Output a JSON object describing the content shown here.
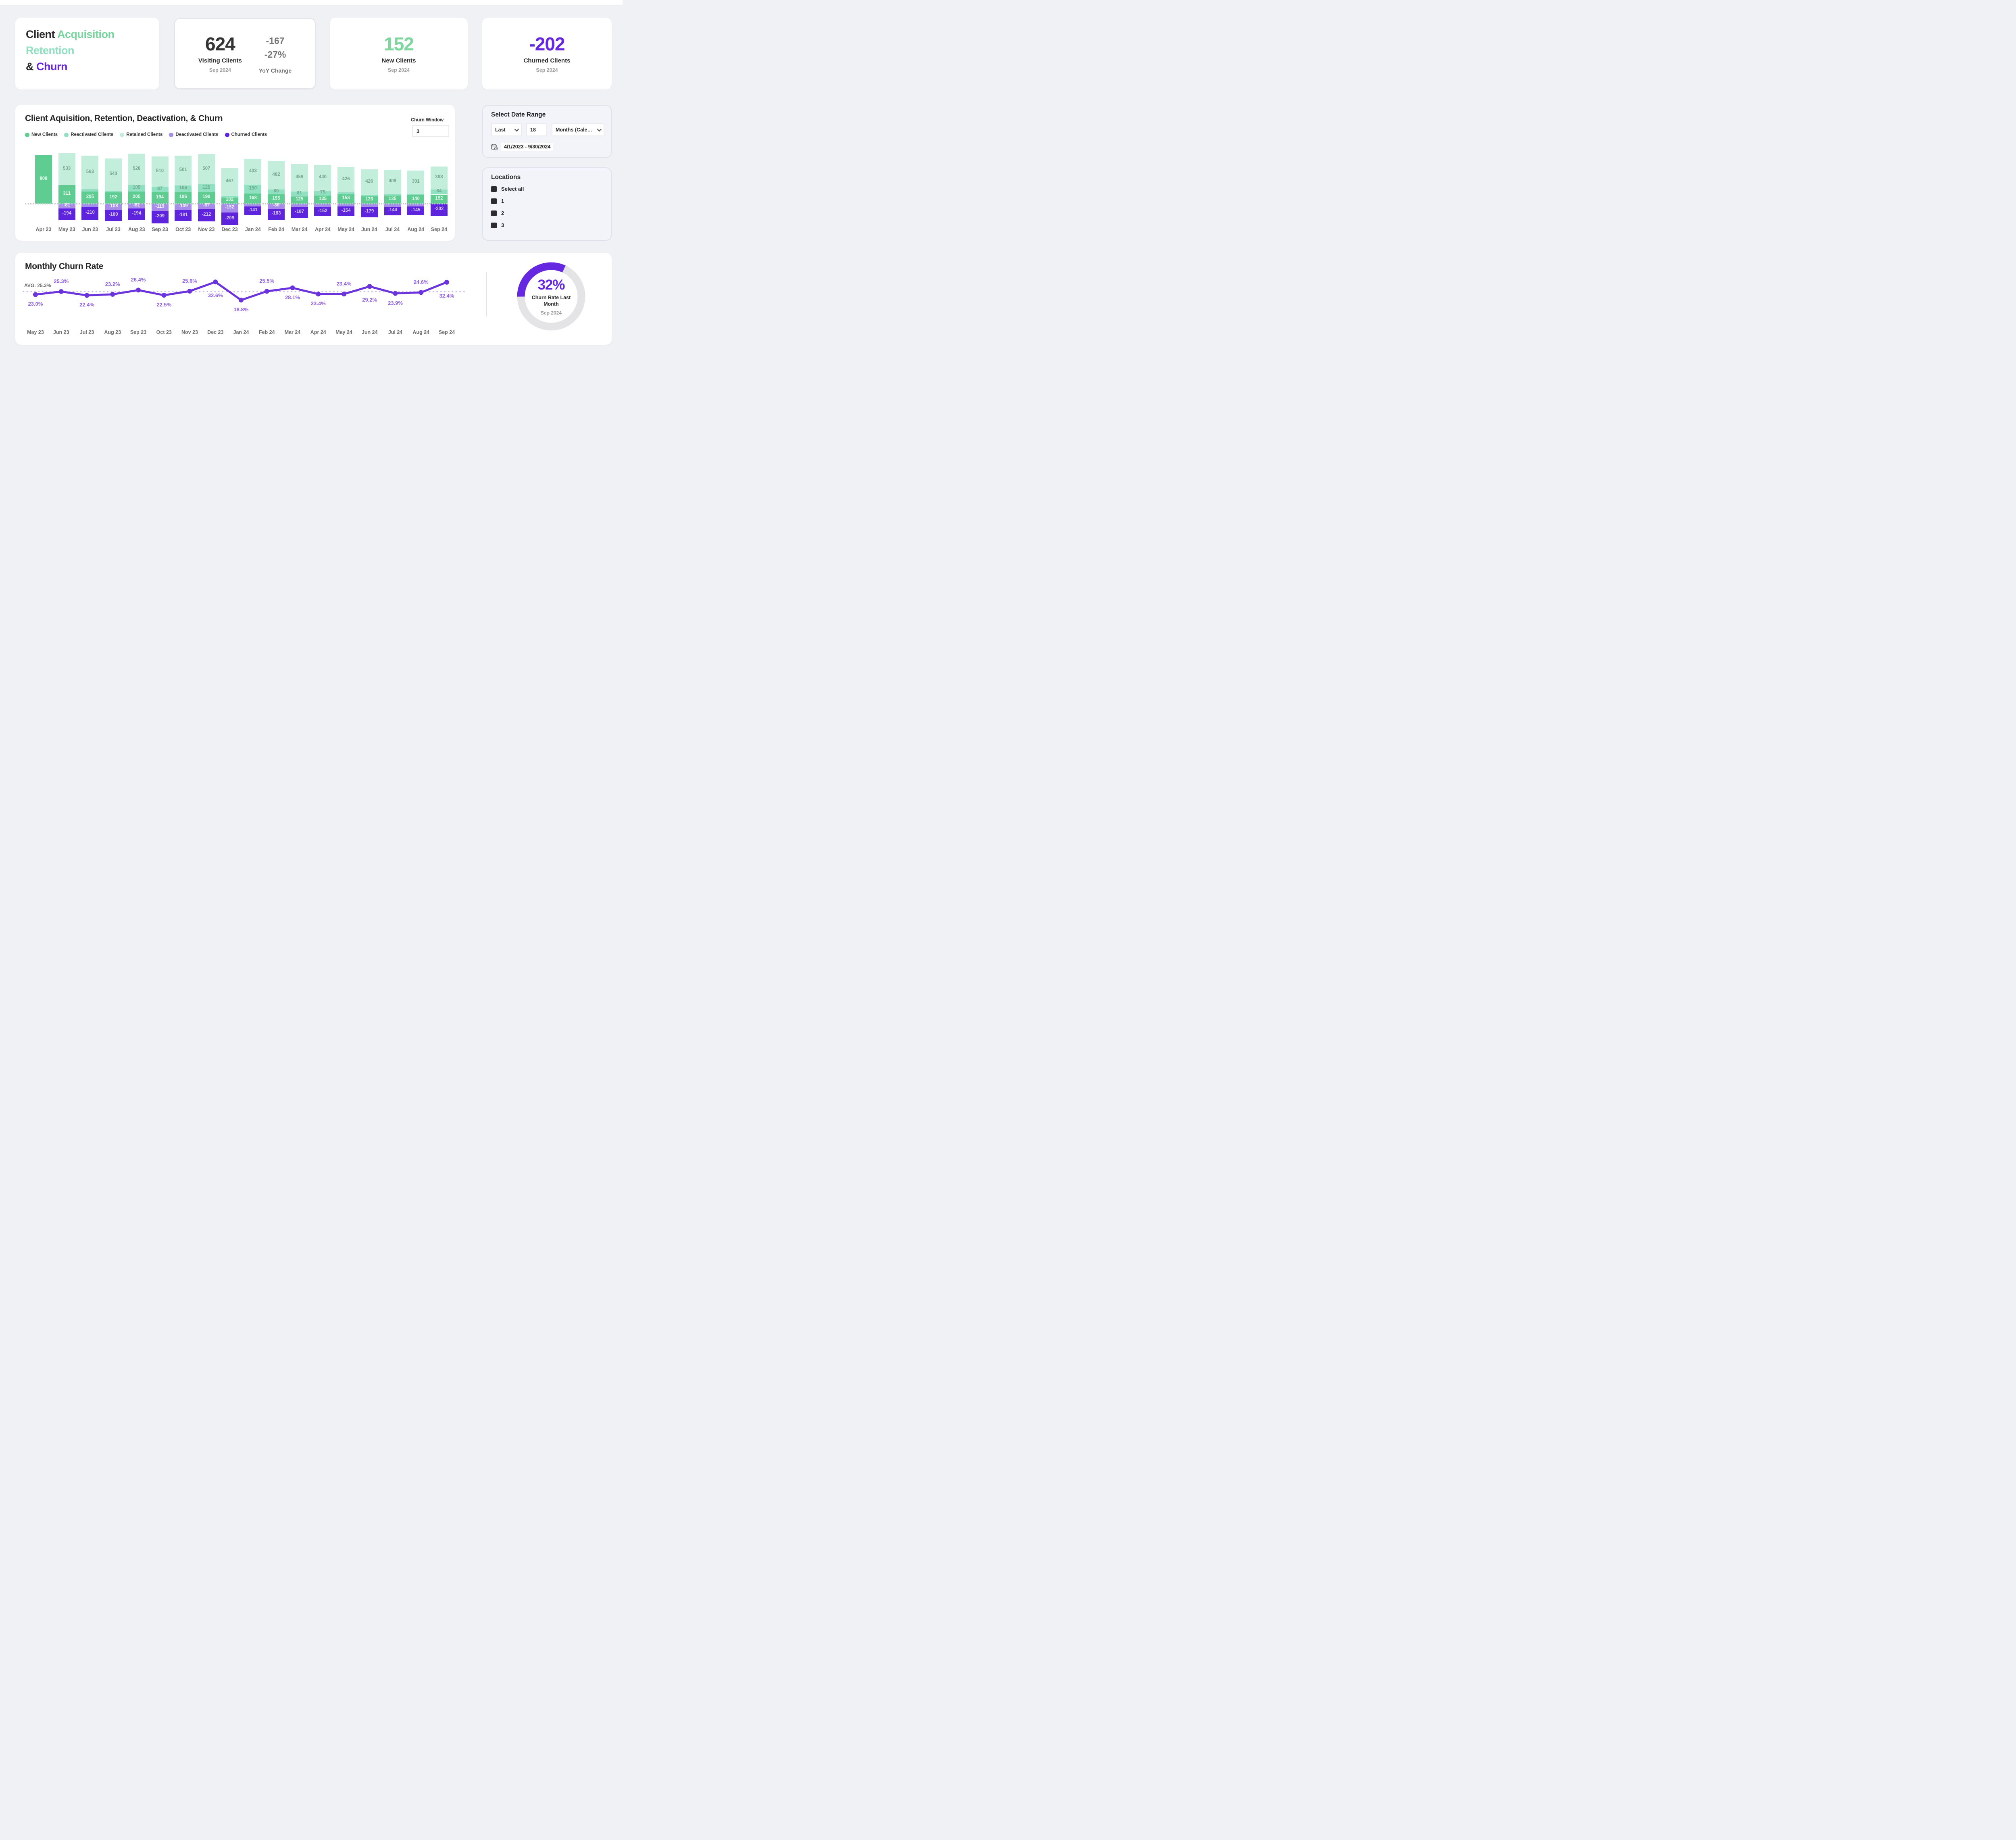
{
  "colors": {
    "page_bg": "#F0F1F5",
    "green": "#5FCD91",
    "mint": "#8FE1C2",
    "pale_mint": "#C3EEDB",
    "light_purple": "#A78CE9",
    "dark_purple": "#5D23DD",
    "brand_purple": "#6527E0",
    "line_purple": "#6B33DB",
    "label_purple": "#8E5FE6",
    "title_green": "#79D59F",
    "title_mint": "#90E0C0",
    "avg_dotted": "#CDBFF1",
    "donut_track": "#E4E4E7"
  },
  "title_card": {
    "line1_dark": "Client",
    "line1_green": "Acquisition",
    "line2": "Retention",
    "line3_dark": "&",
    "line3_purple": "Churn"
  },
  "cards": {
    "visiting": {
      "value": "624",
      "label": "Visiting Clients",
      "period": "Sep 2024",
      "yoy_value": "-167",
      "yoy_pct": "-27%",
      "yoy_label": "YoY Change"
    },
    "new_clients": {
      "value": "152",
      "label": "New Clients",
      "period": "Sep 2024"
    },
    "churned": {
      "value": "-202",
      "label": "Churned Clients",
      "period": "Sep 2024"
    }
  },
  "bar_chart": {
    "title": "Client Aquisition, Retention, Deactivation, & Churn",
    "churn_window": {
      "label": "Churn Window",
      "value": "3"
    },
    "legend": [
      {
        "label": "New Clients",
        "color": "#5FCD91"
      },
      {
        "label": "Reactivated Clients",
        "color": "#8FE1C2"
      },
      {
        "label": "Retained Clients",
        "color": "#C3EEDB"
      },
      {
        "label": "Deactivated Clients",
        "color": "#A78CE9"
      },
      {
        "label": "Churned Clients",
        "color": "#5D23DD"
      }
    ]
  },
  "sidebar": {
    "date_range": {
      "title": "Select Date Range",
      "preset": "Last",
      "number": "18",
      "unit": "Months (Calen…",
      "range_text": "4/1/2023 - 9/30/2024"
    },
    "locations": {
      "title": "Locations",
      "items": [
        "Select all",
        "1",
        "2",
        "3"
      ]
    }
  },
  "chart_data": [
    {
      "type": "bar",
      "stacked": true,
      "title": "Client Aquisition, Retention, Deactivation, & Churn",
      "categories": [
        "Apr 23",
        "May 23",
        "Jun 23",
        "Jul 23",
        "Aug 23",
        "Sep 23",
        "Oct 23",
        "Nov 23",
        "Dec 23",
        "Jan 24",
        "Feb 24",
        "Mar 24",
        "Apr 24",
        "May 24",
        "Jun 24",
        "Jul 24",
        "Aug 24",
        "Sep 24"
      ],
      "series": [
        {
          "name": "Retained Clients",
          "color": "#C3EEDB",
          "label_color": "#74A78D",
          "values": [
            0,
            533,
            563,
            543,
            528,
            510,
            501,
            507,
            467,
            433,
            482,
            459,
            440,
            426,
            426,
            409,
            391,
            388
          ],
          "labels": [
            "",
            "533",
            "563",
            "543",
            "528",
            "510",
            "501",
            "507",
            "467",
            "433",
            "482",
            "459",
            "440",
            "426",
            "426",
            "409",
            "391",
            "388"
          ]
        },
        {
          "name": "Reactivated Clients",
          "color": "#8FE1C2",
          "label_color": "#74A78D",
          "values": [
            0,
            0,
            35,
            20,
            105,
            87,
            109,
            125,
            28,
            150,
            80,
            81,
            75,
            28,
            24,
            26,
            24,
            84
          ],
          "labels": [
            "",
            "",
            "",
            "",
            "105",
            "87",
            "109",
            "125",
            "",
            "150",
            "80",
            "81",
            "75",
            "",
            "",
            "",
            "",
            "84"
          ]
        },
        {
          "name": "New Clients",
          "color": "#5FCD91",
          "label_color": "#E9FBF1",
          "values": [
            808,
            311,
            205,
            192,
            205,
            194,
            196,
            196,
            102,
            168,
            155,
            125,
            135,
            158,
            123,
            135,
            140,
            152
          ],
          "labels": [
            "808",
            "311",
            "205",
            "192",
            "205",
            "194",
            "196",
            "196",
            "102",
            "168",
            "155",
            "125",
            "135",
            "158",
            "123",
            "135",
            "140",
            "152"
          ]
        },
        {
          "name": "Deactivated Clients",
          "color": "#A78CE9",
          "label_color": "#F5F1FE",
          "values": [
            0,
            -81,
            -60,
            -108,
            -81,
            -119,
            -109,
            -87,
            -152,
            -48,
            -86,
            -56,
            -56,
            -50,
            -54,
            -52,
            -46,
            0
          ],
          "labels": [
            "",
            "-81",
            "",
            "-108",
            "-81",
            "-119",
            "-109",
            "-87",
            "-152",
            "",
            "-86",
            "",
            "",
            "",
            "",
            "",
            "",
            ""
          ]
        },
        {
          "name": "Churned Clients",
          "color": "#5D23DD",
          "label_color": "#D3C5F4",
          "values": [
            0,
            -194,
            -210,
            -180,
            -194,
            -209,
            -181,
            -212,
            -209,
            -141,
            -183,
            -187,
            -152,
            -154,
            -179,
            -144,
            -145,
            -202
          ],
          "labels": [
            "",
            "-194",
            "-210",
            "-180",
            "-194",
            "-209",
            "-181",
            "-212",
            "-209",
            "-141",
            "-183",
            "-187",
            "-152",
            "-154",
            "-179",
            "-144",
            "-145",
            "-202"
          ]
        }
      ],
      "baseline": 0,
      "grid": false
    },
    {
      "type": "line",
      "title": "Monthly Churn Rate",
      "avg_label": "AVG: 25.3%",
      "avg": 25.3,
      "x": [
        "May 23",
        "Jun 23",
        "Jul 23",
        "Aug 23",
        "Sep 23",
        "Oct 23",
        "Nov 23",
        "Dec 23",
        "Jan 24",
        "Feb 24",
        "Mar 24",
        "Apr 24",
        "May 24",
        "Jun 24",
        "Jul 24",
        "Aug 24",
        "Sep 24"
      ],
      "values": [
        23.0,
        25.3,
        22.4,
        23.2,
        26.4,
        22.5,
        25.6,
        32.6,
        18.8,
        25.5,
        28.1,
        23.4,
        23.4,
        29.2,
        23.9,
        24.6,
        32.4
      ],
      "labels": [
        "23.0%",
        "25.3%",
        "22.4%",
        "23.2%",
        "26.4%",
        "22.5%",
        "25.6%",
        "32.6%",
        "18.8%",
        "25.5%",
        "28.1%",
        "23.4%",
        "23.4%",
        "29.2%",
        "23.9%",
        "24.6%",
        "32.4%"
      ],
      "label_positions": [
        "below",
        "above",
        "below",
        "above",
        "above",
        "below",
        "above",
        "below",
        "below",
        "above",
        "below",
        "below",
        "above",
        "below",
        "below",
        "above",
        "below"
      ],
      "ylim": [
        15,
        35
      ],
      "grid": false,
      "legend_position": "none"
    },
    {
      "type": "donut",
      "pct": 32,
      "center_value": "32%",
      "label": "Churn Rate Last Month",
      "period": "Sep 2024"
    }
  ]
}
